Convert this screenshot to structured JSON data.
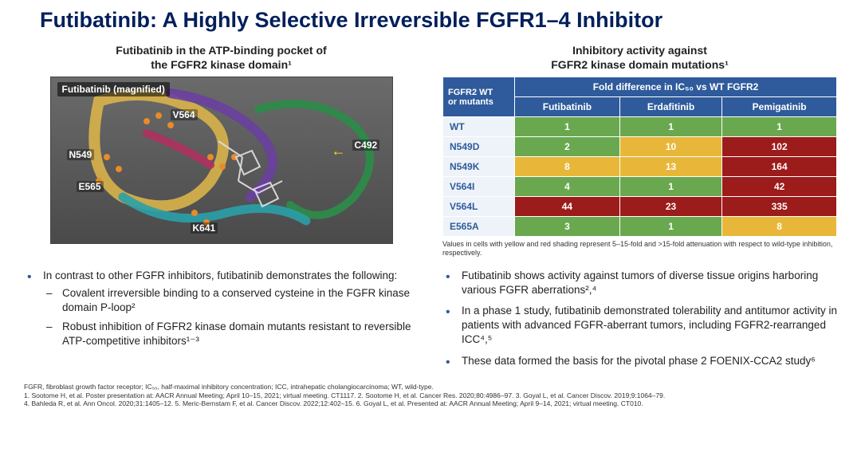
{
  "title": "Futibatinib: A Highly Selective Irreversible FGFR1–4 Inhibitor",
  "left": {
    "subhead_l1": "Futibatinib in the ATP-binding pocket of",
    "subhead_l2": "the FGFR2 kinase domain¹",
    "tag": "Futibatinib (magnified)",
    "labels": {
      "v564": "V564",
      "n549": "N549",
      "e565": "E565",
      "k641": "K641",
      "c492": "C492"
    }
  },
  "right": {
    "subhead_l1": "Inhibitory activity against",
    "subhead_l2": "FGFR2 kinase domain mutations¹",
    "table": {
      "corner_l1": "FGFR2 WT",
      "corner_l2": "or mutants",
      "header_span": "Fold difference in IC₅₀ vs WT FGFR2",
      "cols": [
        "Futibatinib",
        "Erdafitinib",
        "Pemigatinib"
      ],
      "rows": [
        {
          "label": "WT",
          "cells": [
            {
              "v": "1",
              "c": "#6aa84f"
            },
            {
              "v": "1",
              "c": "#6aa84f"
            },
            {
              "v": "1",
              "c": "#6aa84f"
            }
          ]
        },
        {
          "label": "N549D",
          "cells": [
            {
              "v": "2",
              "c": "#6aa84f"
            },
            {
              "v": "10",
              "c": "#e8b73a"
            },
            {
              "v": "102",
              "c": "#9c1b1b"
            }
          ]
        },
        {
          "label": "N549K",
          "cells": [
            {
              "v": "8",
              "c": "#e8b73a"
            },
            {
              "v": "13",
              "c": "#e8b73a"
            },
            {
              "v": "164",
              "c": "#9c1b1b"
            }
          ]
        },
        {
          "label": "V564I",
          "cells": [
            {
              "v": "4",
              "c": "#6aa84f"
            },
            {
              "v": "1",
              "c": "#6aa84f"
            },
            {
              "v": "42",
              "c": "#9c1b1b"
            }
          ]
        },
        {
          "label": "V564L",
          "cells": [
            {
              "v": "44",
              "c": "#9c1b1b"
            },
            {
              "v": "23",
              "c": "#9c1b1b"
            },
            {
              "v": "335",
              "c": "#9c1b1b"
            }
          ]
        },
        {
          "label": "E565A",
          "cells": [
            {
              "v": "3",
              "c": "#6aa84f"
            },
            {
              "v": "1",
              "c": "#6aa84f"
            },
            {
              "v": "8",
              "c": "#e8b73a"
            }
          ]
        }
      ],
      "note": "Values in cells with yellow and red shading represent 5–15-fold and >15-fold attenuation with respect to wild-type inhibition, respectively."
    }
  },
  "bl": {
    "b1": "In contrast to other FGFR inhibitors, futibatinib demonstrates the following:",
    "b1a": "Covalent irreversible binding to a conserved cysteine in the FGFR kinase domain P-loop²",
    "b1b": "Robust inhibition of FGFR2 kinase domain mutants resistant to reversible ATP-competitive inhibitors¹⁻³"
  },
  "br": {
    "b1": "Futibatinib shows activity against tumors of diverse tissue origins harboring various FGFR aberrations²,⁴",
    "b2": "In a phase 1 study, futibatinib demonstrated tolerability and antitumor activity in patients with advanced FGFR-aberrant tumors, including FGFR2-rearranged ICC⁴,⁵",
    "b3": "These data formed the basis for the pivotal phase 2 FOENIX-CCA2 study⁶"
  },
  "refs": {
    "l1": "FGFR, fibroblast growth factor receptor; IC₅₀, half-maximal inhibitory concentration; ICC, intrahepatic cholangiocarcinoma; WT, wild-type.",
    "l2": "1. Sootome H, et al. Poster presentation at: AACR Annual Meeting; April 10–15, 2021; virtual meeting. CT1117. 2. Sootome H, et al. Cancer Res. 2020;80:4986–97. 3. Goyal L, et al. Cancer Discov. 2019;9:1064–79.",
    "l3": "4. Bahleda R, et al. Ann Oncol. 2020;31:1405–12. 5. Meric-Bernstam F, et al. Cancer Discov. 2022;12:402–15. 6. Goyal L, et al. Presented at: AACR Annual Meeting; April 9–14, 2021; virtual meeting. CT010."
  }
}
